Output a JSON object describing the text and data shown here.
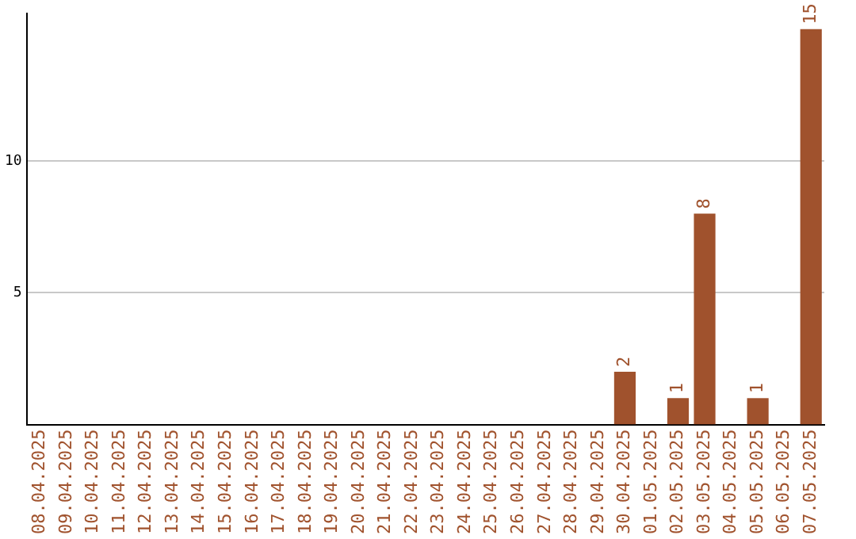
{
  "chart_data": {
    "type": "bar",
    "categories": [
      "08.04.2025",
      "09.04.2025",
      "10.04.2025",
      "11.04.2025",
      "12.04.2025",
      "13.04.2025",
      "14.04.2025",
      "15.04.2025",
      "16.04.2025",
      "17.04.2025",
      "18.04.2025",
      "19.04.2025",
      "20.04.2025",
      "21.04.2025",
      "22.04.2025",
      "23.04.2025",
      "24.04.2025",
      "25.04.2025",
      "26.04.2025",
      "27.04.2025",
      "28.04.2025",
      "29.04.2025",
      "30.04.2025",
      "01.05.2025",
      "02.05.2025",
      "03.05.2025",
      "04.05.2025",
      "05.05.2025",
      "06.05.2025",
      "07.05.2025"
    ],
    "values": [
      0,
      0,
      0,
      0,
      0,
      0,
      0,
      0,
      0,
      0,
      0,
      0,
      0,
      0,
      0,
      0,
      0,
      0,
      0,
      0,
      0,
      0,
      2,
      0,
      1,
      8,
      0,
      1,
      0,
      15
    ],
    "value_labels": [
      null,
      null,
      null,
      null,
      null,
      null,
      null,
      null,
      null,
      null,
      null,
      null,
      null,
      null,
      null,
      null,
      null,
      null,
      null,
      null,
      null,
      null,
      "2",
      null,
      "1",
      "8",
      null,
      "1",
      null,
      "15"
    ],
    "color": "#a0522d",
    "ylim": [
      0,
      15.6
    ],
    "yticks": [
      5,
      10
    ],
    "grid": "y"
  }
}
